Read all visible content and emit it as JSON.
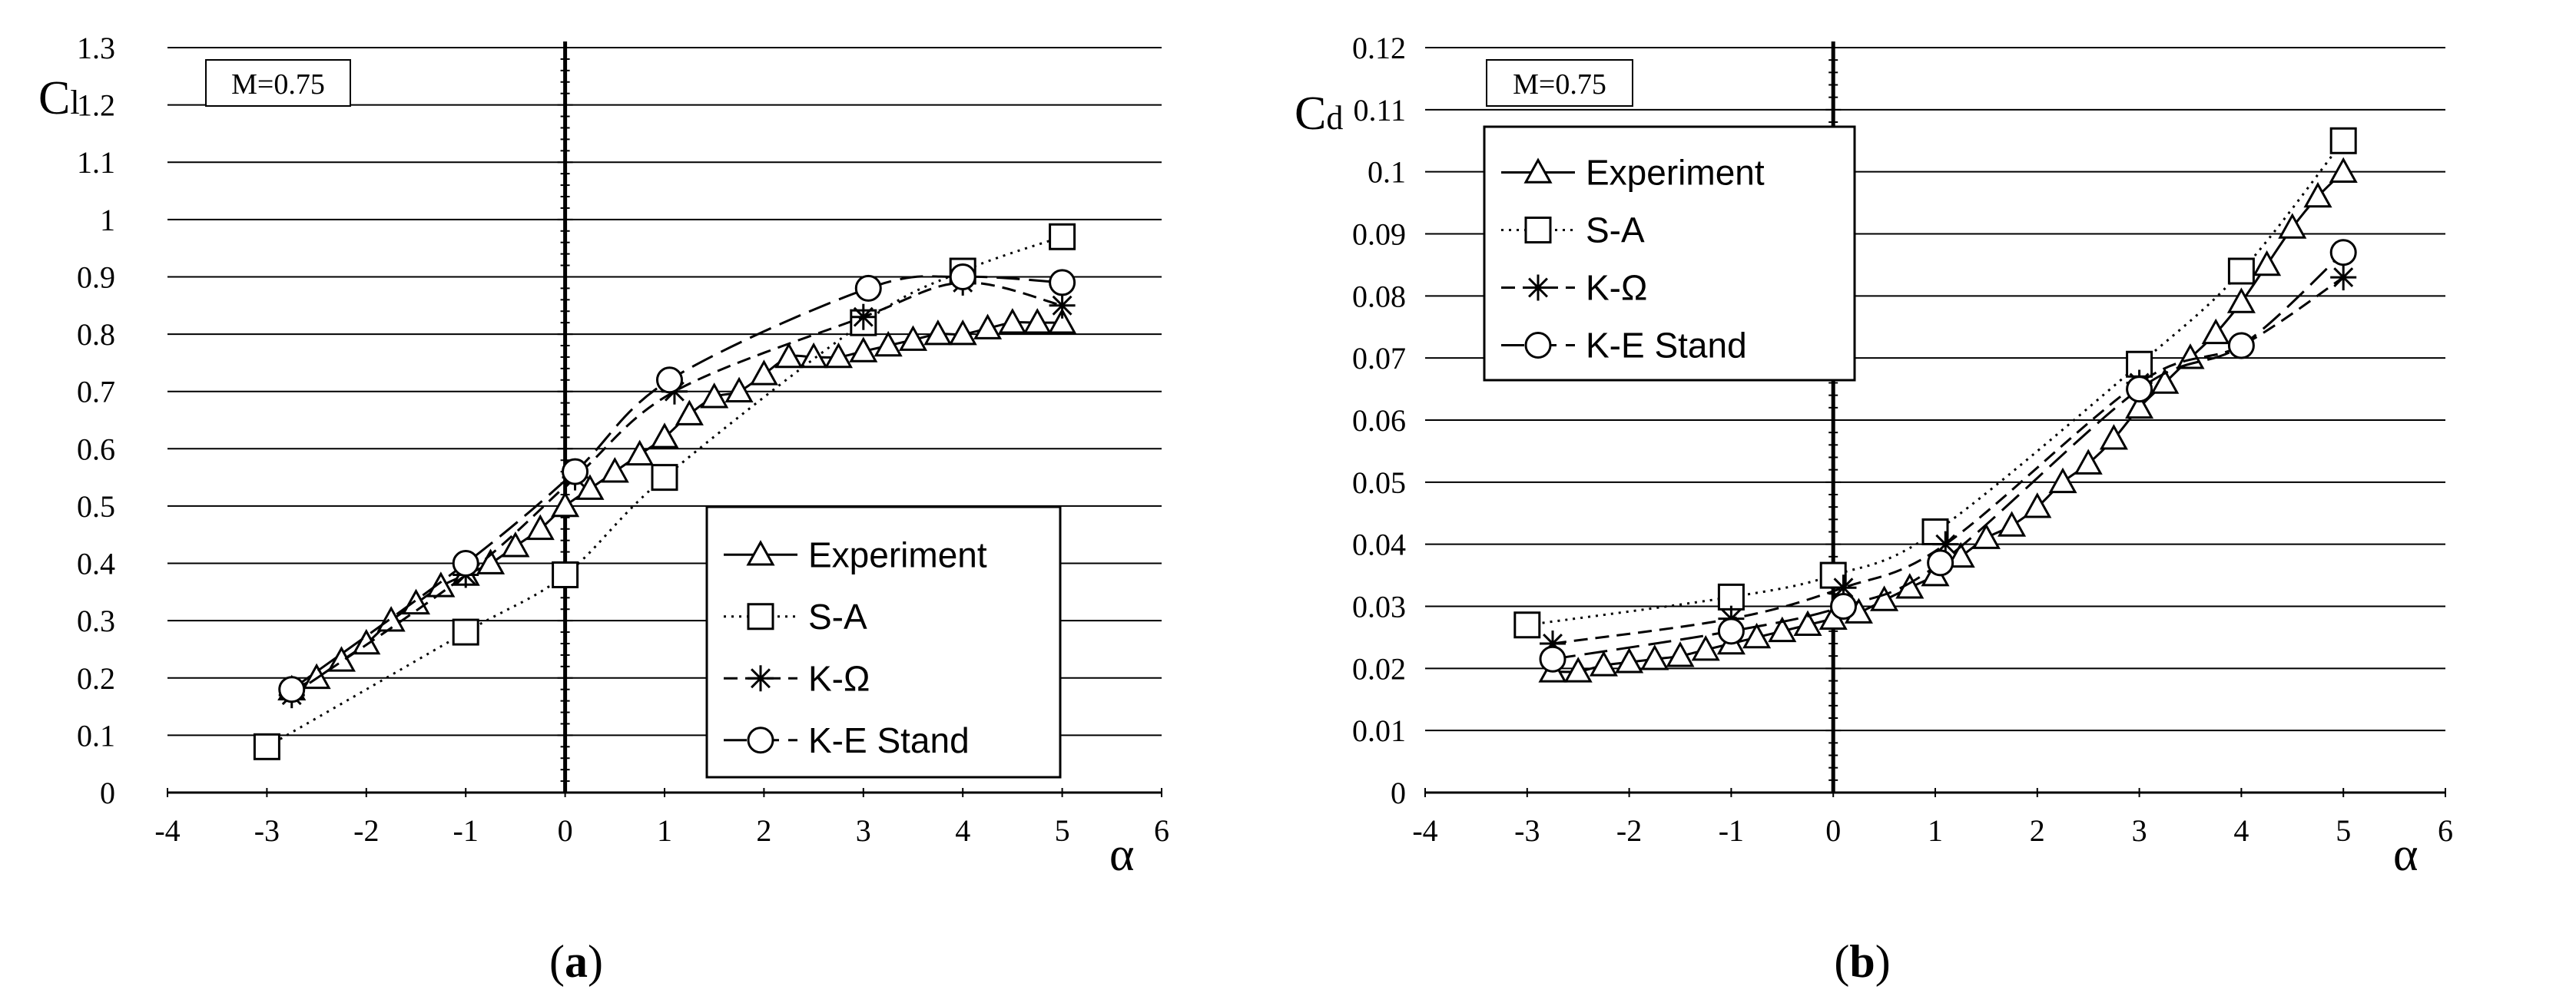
{
  "chart_data": [
    {
      "id": "a",
      "type": "line",
      "caption_open": "(",
      "caption_letter": "a",
      "caption_close": ")",
      "annotation": "M=0.75",
      "ylabel_main": "C",
      "ylabel_sub": "l",
      "xlabel": "α",
      "xlim": [
        -4,
        6
      ],
      "ylim": [
        0,
        1.3
      ],
      "xstep": 1,
      "ystep": 0.1,
      "xdecimals": 0,
      "ydecimals": 1,
      "yticks": [
        "0",
        "0.1",
        "0.2",
        "0.3",
        "0.4",
        "0.5",
        "0.6",
        "0.7",
        "0.8",
        "0.9",
        "1",
        "1.1",
        "1.2",
        "1.3"
      ],
      "xticks": [
        "-4",
        "-3",
        "-2",
        "-1",
        "0",
        "1",
        "2",
        "3",
        "4",
        "5",
        "6"
      ],
      "legend_position": "lower-right",
      "series": [
        {
          "name": "Experiment",
          "marker": "triangle",
          "dash": "solid",
          "x": [
            -2.75,
            -2.5,
            -2.25,
            -2,
            -1.75,
            -1.5,
            -1.25,
            -1,
            -0.75,
            -0.5,
            -0.25,
            0,
            0.25,
            0.5,
            0.75,
            1,
            1.25,
            1.5,
            1.75,
            2,
            2.25,
            2.5,
            2.75,
            3,
            3.25,
            3.5,
            3.75,
            4,
            4.25,
            4.5,
            4.75,
            5
          ],
          "y": [
            0.18,
            0.2,
            0.23,
            0.26,
            0.3,
            0.33,
            0.36,
            0.38,
            0.4,
            0.43,
            0.46,
            0.5,
            0.53,
            0.56,
            0.59,
            0.62,
            0.66,
            0.69,
            0.7,
            0.73,
            0.76,
            0.76,
            0.76,
            0.77,
            0.78,
            0.79,
            0.8,
            0.8,
            0.81,
            0.82,
            0.82,
            0.82
          ]
        },
        {
          "name": "S-A",
          "marker": "square",
          "dash": "dotted",
          "x": [
            -3,
            -1,
            0,
            1,
            3,
            4,
            5
          ],
          "y": [
            0.08,
            0.28,
            0.38,
            0.55,
            0.82,
            0.91,
            0.97
          ]
        },
        {
          "name": "K-Ω",
          "marker": "star",
          "dash": "dashed",
          "x": [
            -2.75,
            -1,
            0.1,
            1.1,
            3,
            4,
            5
          ],
          "y": [
            0.17,
            0.38,
            0.55,
            0.7,
            0.83,
            0.89,
            0.85
          ]
        },
        {
          "name": "K-E Stand",
          "marker": "circle",
          "dash": "longdash",
          "x": [
            -2.75,
            -1,
            0.1,
            1.05,
            3.05,
            4,
            5
          ],
          "y": [
            0.18,
            0.4,
            0.56,
            0.72,
            0.88,
            0.9,
            0.89
          ]
        }
      ]
    },
    {
      "id": "b",
      "type": "line",
      "caption_open": "(",
      "caption_letter": "b",
      "caption_close": ")",
      "annotation": "M=0.75",
      "ylabel_main": "C",
      "ylabel_sub": "d",
      "xlabel": "α",
      "xlim": [
        -4,
        6
      ],
      "ylim": [
        0,
        0.12
      ],
      "xstep": 1,
      "ystep": 0.01,
      "xdecimals": 0,
      "ydecimals": 2,
      "yticks": [
        "0",
        "0.01",
        "0.02",
        "0.03",
        "0.04",
        "0.05",
        "0.06",
        "0.07",
        "0.08",
        "0.09",
        "0.1",
        "0.11",
        "0.12"
      ],
      "xticks": [
        "-4",
        "-3",
        "-2",
        "-1",
        "0",
        "1",
        "2",
        "3",
        "4",
        "5",
        "6"
      ],
      "legend_position": "top-left",
      "series": [
        {
          "name": "Experiment",
          "marker": "triangle",
          "dash": "solid",
          "x": [
            -2.75,
            -2.5,
            -2.25,
            -2,
            -1.75,
            -1.5,
            -1.25,
            -1,
            -0.75,
            -0.5,
            -0.25,
            0,
            0.25,
            0.5,
            0.75,
            1,
            1.25,
            1.5,
            1.75,
            2,
            2.25,
            2.5,
            2.75,
            3,
            3.25,
            3.5,
            3.75,
            4,
            4.25,
            4.5,
            4.75,
            5
          ],
          "y": [
            0.0195,
            0.0195,
            0.0205,
            0.021,
            0.0215,
            0.022,
            0.023,
            0.024,
            0.025,
            0.026,
            0.027,
            0.028,
            0.029,
            0.031,
            0.033,
            0.035,
            0.038,
            0.041,
            0.043,
            0.046,
            0.05,
            0.053,
            0.057,
            0.062,
            0.066,
            0.07,
            0.074,
            0.079,
            0.085,
            0.091,
            0.096,
            0.1
          ]
        },
        {
          "name": "S-A",
          "marker": "square",
          "dash": "dotted",
          "x": [
            -3,
            -1,
            0,
            1,
            3,
            4,
            5
          ],
          "y": [
            0.027,
            0.0315,
            0.035,
            0.042,
            0.069,
            0.084,
            0.105
          ]
        },
        {
          "name": "K-Ω",
          "marker": "star",
          "dash": "dashed",
          "x": [
            -2.75,
            -1,
            0.1,
            1.1,
            3,
            4,
            5
          ],
          "y": [
            0.024,
            0.028,
            0.033,
            0.04,
            0.066,
            0.072,
            0.083
          ]
        },
        {
          "name": "K-E Stand",
          "marker": "circle",
          "dash": "longdash",
          "x": [
            -2.75,
            -1,
            0.1,
            1.05,
            3,
            4,
            5
          ],
          "y": [
            0.0215,
            0.026,
            0.03,
            0.037,
            0.065,
            0.072,
            0.087
          ]
        }
      ]
    }
  ]
}
